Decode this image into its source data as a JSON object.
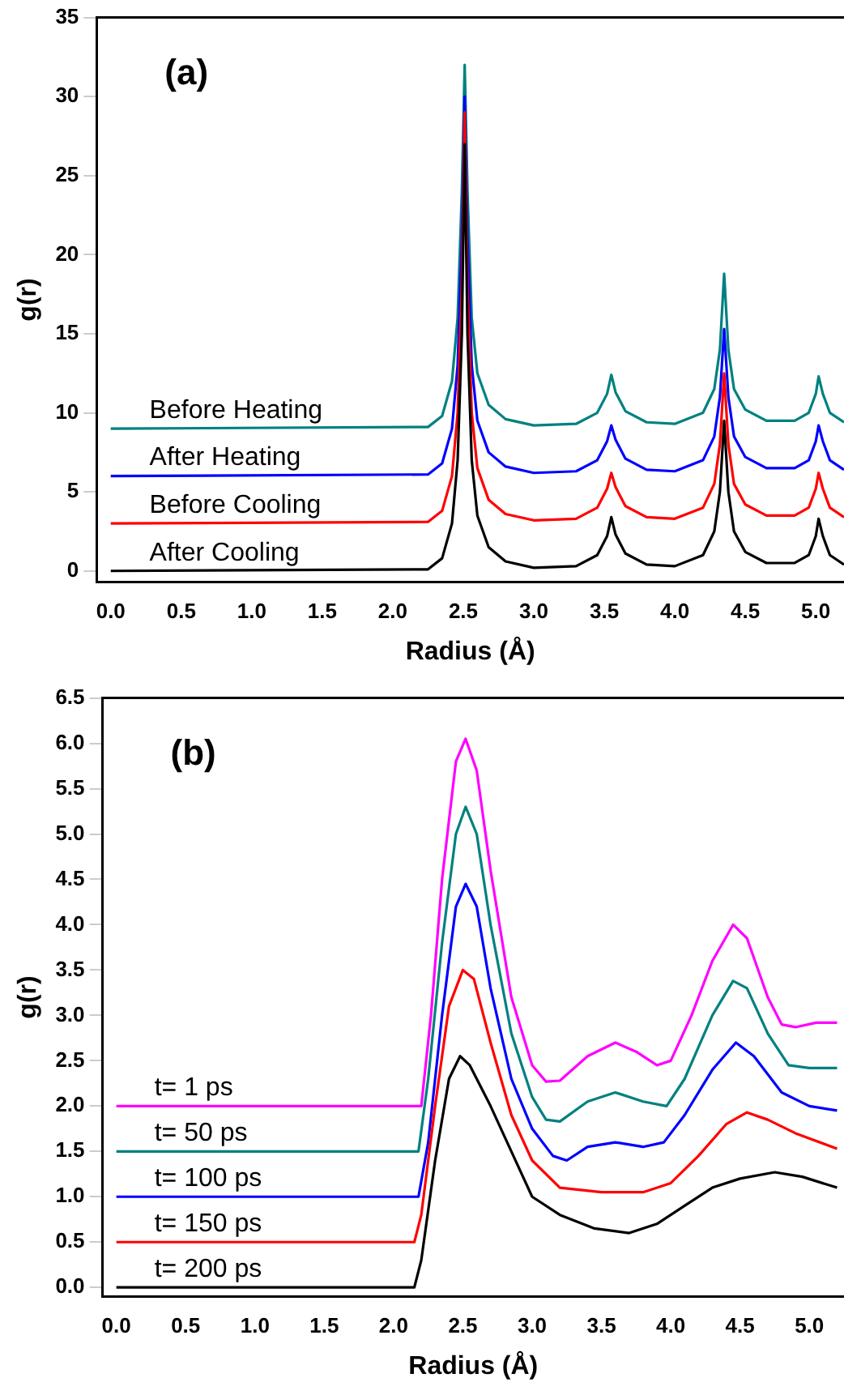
{
  "chart_data": [
    {
      "type": "line",
      "xlabel": "Radius (Å)",
      "ylabel": "g(r)",
      "annotations": [
        "(a)"
      ],
      "marker": "none",
      "xlim": [
        -0.1,
        5.2
      ],
      "ylim": [
        -0.7,
        35
      ],
      "xticks": [
        {
          "value": 0,
          "label": "0.0"
        },
        {
          "value": 0.5,
          "label": "0.5"
        },
        {
          "value": 1,
          "label": "1.0"
        },
        {
          "value": 1.5,
          "label": "1.5"
        },
        {
          "value": 2,
          "label": "2.0"
        },
        {
          "value": 2.5,
          "label": "2.5"
        },
        {
          "value": 3,
          "label": "3.0"
        },
        {
          "value": 3.5,
          "label": "3.5"
        },
        {
          "value": 4,
          "label": "4.0"
        },
        {
          "value": 4.5,
          "label": "4.5"
        },
        {
          "value": 5,
          "label": "5.0"
        }
      ],
      "yticks": [
        0,
        5,
        10,
        15,
        20,
        25,
        30,
        35
      ],
      "series": [
        {
          "name": "After Cooling",
          "color": "#000000",
          "x": [
            0,
            2.25,
            2.35,
            2.42,
            2.46,
            2.49,
            2.51,
            2.53,
            2.56,
            2.6,
            2.68,
            2.8,
            3.0,
            3.3,
            3.45,
            3.52,
            3.55,
            3.58,
            3.65,
            3.8,
            4.0,
            4.2,
            4.28,
            4.32,
            4.35,
            4.38,
            4.42,
            4.5,
            4.65,
            4.85,
            4.95,
            5.0,
            5.02,
            5.05,
            5.1,
            5.2
          ],
          "values": [
            0,
            0.1,
            0.8,
            3,
            7,
            15,
            27,
            15,
            7,
            3.5,
            1.5,
            0.6,
            0.2,
            0.3,
            1.0,
            2.2,
            3.4,
            2.3,
            1.1,
            0.4,
            0.3,
            1.0,
            2.5,
            5,
            9.5,
            5,
            2.5,
            1.2,
            0.5,
            0.5,
            1.0,
            2.2,
            3.3,
            2.2,
            1.0,
            0.4
          ]
        },
        {
          "name": "Before Cooling",
          "color": "#ff0000",
          "x": [
            0,
            2.25,
            2.35,
            2.42,
            2.46,
            2.49,
            2.51,
            2.53,
            2.56,
            2.6,
            2.68,
            2.8,
            3.0,
            3.3,
            3.45,
            3.52,
            3.55,
            3.58,
            3.65,
            3.8,
            4.0,
            4.2,
            4.28,
            4.32,
            4.35,
            4.38,
            4.42,
            4.5,
            4.65,
            4.85,
            4.95,
            5.0,
            5.02,
            5.05,
            5.1,
            5.2
          ],
          "values": [
            3,
            3.1,
            3.8,
            6,
            10,
            18,
            29,
            18,
            10,
            6.5,
            4.5,
            3.6,
            3.2,
            3.3,
            4.0,
            5.2,
            6.2,
            5.3,
            4.1,
            3.4,
            3.3,
            4.0,
            5.5,
            8,
            12.5,
            8,
            5.5,
            4.2,
            3.5,
            3.5,
            4.0,
            5.2,
            6.2,
            5.2,
            4.0,
            3.4
          ]
        },
        {
          "name": "After Heating",
          "color": "#0000ff",
          "x": [
            0,
            2.25,
            2.35,
            2.42,
            2.46,
            2.49,
            2.51,
            2.53,
            2.56,
            2.6,
            2.68,
            2.8,
            3.0,
            3.3,
            3.45,
            3.52,
            3.55,
            3.58,
            3.65,
            3.8,
            4.0,
            4.2,
            4.28,
            4.32,
            4.35,
            4.38,
            4.42,
            4.5,
            4.65,
            4.85,
            4.95,
            5.0,
            5.02,
            5.05,
            5.1,
            5.2
          ],
          "values": [
            6,
            6.1,
            6.8,
            9,
            13,
            21,
            30,
            21,
            13,
            9.5,
            7.5,
            6.6,
            6.2,
            6.3,
            7.0,
            8.2,
            9.2,
            8.3,
            7.1,
            6.4,
            6.3,
            7.0,
            8.5,
            11,
            15.3,
            11,
            8.5,
            7.2,
            6.5,
            6.5,
            7.0,
            8.2,
            9.2,
            8.2,
            7.0,
            6.4
          ]
        },
        {
          "name": "Before Heating",
          "color": "#008080",
          "x": [
            0,
            2.25,
            2.35,
            2.42,
            2.46,
            2.49,
            2.51,
            2.53,
            2.56,
            2.6,
            2.68,
            2.8,
            3.0,
            3.3,
            3.45,
            3.52,
            3.55,
            3.58,
            3.65,
            3.8,
            4.0,
            4.2,
            4.28,
            4.32,
            4.35,
            4.38,
            4.42,
            4.5,
            4.65,
            4.85,
            4.95,
            5.0,
            5.02,
            5.05,
            5.1,
            5.2
          ],
          "values": [
            9,
            9.1,
            9.8,
            12,
            16,
            24,
            32,
            24,
            16,
            12.5,
            10.5,
            9.6,
            9.2,
            9.3,
            10.0,
            11.2,
            12.4,
            11.3,
            10.1,
            9.4,
            9.3,
            10.0,
            11.5,
            14,
            18.8,
            14,
            11.5,
            10.2,
            9.5,
            9.5,
            10.0,
            11.2,
            12.3,
            11.2,
            10.0,
            9.4
          ]
        }
      ]
    },
    {
      "type": "line",
      "xlabel": "Radius (Å)",
      "ylabel": "g(r)",
      "annotations": [
        "(b)"
      ],
      "marker": "none",
      "xlim": [
        -0.1,
        5.25
      ],
      "ylim": [
        -0.1,
        6.5
      ],
      "xticks": [
        {
          "value": 0,
          "label": "0.0"
        },
        {
          "value": 0.5,
          "label": "0.5"
        },
        {
          "value": 1,
          "label": "1.0"
        },
        {
          "value": 1.5,
          "label": "1.5"
        },
        {
          "value": 2,
          "label": "2.0"
        },
        {
          "value": 2.5,
          "label": "2.5"
        },
        {
          "value": 3,
          "label": "3.0"
        },
        {
          "value": 3.5,
          "label": "3.5"
        },
        {
          "value": 4,
          "label": "4.0"
        },
        {
          "value": 4.5,
          "label": "4.5"
        },
        {
          "value": 5,
          "label": "5.0"
        }
      ],
      "yticks": [
        {
          "value": 0,
          "label": "0.0"
        },
        {
          "value": 0.5,
          "label": "0.5"
        },
        {
          "value": 1,
          "label": "1.0"
        },
        {
          "value": 1.5,
          "label": "1.5"
        },
        {
          "value": 2,
          "label": "2.0"
        },
        {
          "value": 2.5,
          "label": "2.5"
        },
        {
          "value": 3,
          "label": "3.0"
        },
        {
          "value": 3.5,
          "label": "3.5"
        },
        {
          "value": 4,
          "label": "4.0"
        },
        {
          "value": 4.5,
          "label": "4.5"
        },
        {
          "value": 5,
          "label": "5.0"
        },
        {
          "value": 5.5,
          "label": "5.5"
        },
        {
          "value": 6,
          "label": "6.0"
        },
        {
          "value": 6.5,
          "label": "6.5"
        }
      ],
      "series": [
        {
          "name": "t= 200 ps",
          "color": "#000000",
          "x": [
            0,
            2.15,
            2.2,
            2.3,
            2.4,
            2.48,
            2.55,
            2.7,
            2.85,
            3.0,
            3.2,
            3.45,
            3.7,
            3.9,
            4.1,
            4.3,
            4.5,
            4.75,
            4.95,
            5.2
          ],
          "values": [
            0,
            0,
            0.3,
            1.4,
            2.3,
            2.55,
            2.45,
            2.0,
            1.5,
            1.0,
            0.8,
            0.65,
            0.6,
            0.7,
            0.9,
            1.1,
            1.2,
            1.27,
            1.22,
            1.1
          ]
        },
        {
          "name": "t= 150 ps",
          "color": "#ff0000",
          "x": [
            0,
            2.15,
            2.2,
            2.3,
            2.4,
            2.5,
            2.58,
            2.7,
            2.85,
            3.0,
            3.2,
            3.5,
            3.8,
            4.0,
            4.2,
            4.4,
            4.55,
            4.7,
            4.9,
            5.2
          ],
          "values": [
            0.5,
            0.5,
            0.8,
            2.0,
            3.1,
            3.5,
            3.4,
            2.7,
            1.9,
            1.4,
            1.1,
            1.05,
            1.05,
            1.15,
            1.45,
            1.8,
            1.93,
            1.85,
            1.7,
            1.53
          ]
        },
        {
          "name": "t= 100 ps",
          "color": "#0000ff",
          "x": [
            0,
            2.18,
            2.25,
            2.35,
            2.45,
            2.52,
            2.6,
            2.7,
            2.85,
            3.0,
            3.15,
            3.25,
            3.4,
            3.6,
            3.8,
            3.95,
            4.1,
            4.3,
            4.47,
            4.6,
            4.8,
            5.0,
            5.2
          ],
          "values": [
            1,
            1,
            1.6,
            3.0,
            4.2,
            4.45,
            4.2,
            3.3,
            2.3,
            1.75,
            1.45,
            1.4,
            1.55,
            1.6,
            1.55,
            1.6,
            1.9,
            2.4,
            2.7,
            2.55,
            2.15,
            2.0,
            1.95
          ]
        },
        {
          "name": "t= 50 ps",
          "color": "#008080",
          "x": [
            0,
            2.18,
            2.25,
            2.35,
            2.45,
            2.52,
            2.6,
            2.7,
            2.85,
            3.0,
            3.1,
            3.2,
            3.4,
            3.6,
            3.8,
            3.97,
            4.1,
            4.3,
            4.45,
            4.55,
            4.7,
            4.85,
            5.0,
            5.2
          ],
          "values": [
            1.5,
            1.5,
            2.3,
            3.8,
            5.0,
            5.3,
            5.0,
            4.0,
            2.8,
            2.1,
            1.85,
            1.83,
            2.05,
            2.15,
            2.05,
            2.0,
            2.3,
            3.0,
            3.38,
            3.3,
            2.8,
            2.45,
            2.42,
            2.42
          ]
        },
        {
          "name": "t= 1 ps",
          "color": "#ff00ff",
          "x": [
            0,
            2.2,
            2.27,
            2.35,
            2.45,
            2.52,
            2.6,
            2.7,
            2.85,
            3.0,
            3.1,
            3.2,
            3.4,
            3.6,
            3.75,
            3.9,
            4.0,
            4.15,
            4.3,
            4.45,
            4.55,
            4.7,
            4.8,
            4.9,
            5.05,
            5.2
          ],
          "values": [
            2,
            2,
            3.0,
            4.5,
            5.8,
            6.05,
            5.7,
            4.6,
            3.2,
            2.45,
            2.27,
            2.28,
            2.55,
            2.7,
            2.6,
            2.45,
            2.5,
            3.0,
            3.6,
            4.0,
            3.85,
            3.2,
            2.9,
            2.87,
            2.92,
            2.92
          ]
        }
      ]
    }
  ]
}
